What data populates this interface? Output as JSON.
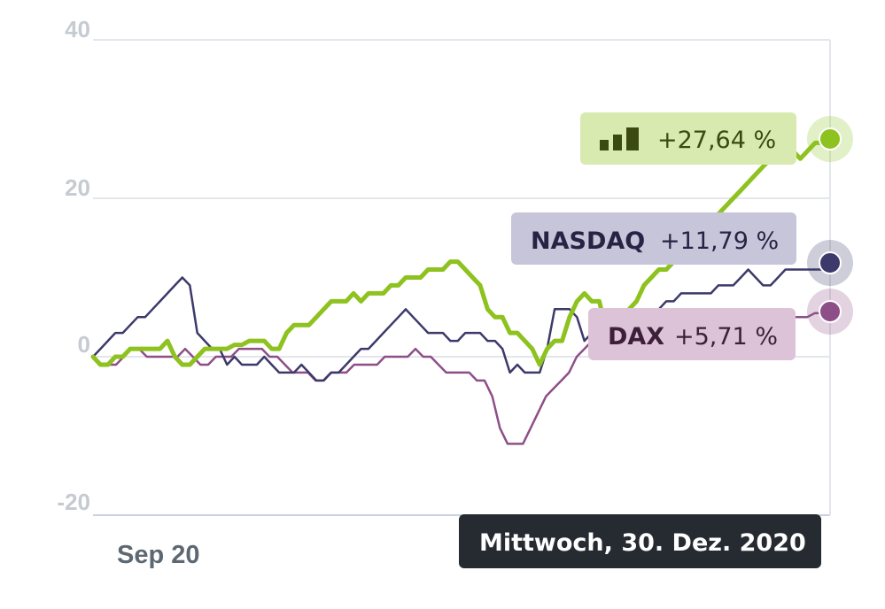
{
  "chart_data": {
    "type": "line",
    "ylim": [
      -20,
      40
    ],
    "y_ticks": [
      "40",
      "20",
      "0",
      "-20"
    ],
    "x_tick_labels": [
      "Sep 20"
    ],
    "grid": true,
    "tooltip": "Mittwoch, 30. Dez. 2020",
    "colors": {
      "stock": "#8dc21f",
      "nasdaq": "#3d3a6b",
      "dax": "#8e4f88"
    },
    "series": [
      {
        "key": "stock",
        "label": "+27,64 %",
        "icon": "bar-chart-icon",
        "values": [
          0,
          -1,
          -1,
          0,
          0,
          1,
          1,
          1,
          1,
          1,
          2,
          0,
          -1,
          -1,
          0,
          1,
          1,
          1,
          1,
          1.5,
          1.5,
          2,
          2,
          2,
          1,
          1,
          3,
          4,
          4,
          4,
          5,
          6,
          7,
          7,
          7,
          8,
          7,
          8,
          8,
          8,
          9,
          9,
          10,
          10,
          10,
          11,
          11,
          11,
          12,
          12,
          11,
          10,
          9,
          6,
          5,
          5,
          3,
          3,
          2,
          1,
          -1,
          1,
          2,
          2,
          5,
          7,
          8,
          7,
          7,
          3,
          4,
          5,
          6,
          7,
          9,
          10,
          11,
          11,
          12,
          13,
          14,
          15,
          16,
          17,
          18,
          19,
          20,
          21,
          22,
          23,
          24,
          25,
          26,
          27,
          26,
          25,
          26,
          27,
          27,
          27.64
        ]
      },
      {
        "key": "nasdaq",
        "label": "+11,79 %",
        "name": "NASDAQ",
        "values": [
          0,
          1,
          2,
          3,
          3,
          4,
          5,
          5,
          6,
          7,
          8,
          9,
          10,
          9,
          3,
          2,
          1,
          1,
          -1,
          0,
          -1,
          -1,
          -1,
          0,
          -1,
          -2,
          -2,
          -2,
          -1,
          -2,
          -3,
          -3,
          -2,
          -2,
          -1,
          0,
          1,
          1,
          2,
          3,
          4,
          5,
          6,
          5,
          4,
          3,
          3,
          3,
          2,
          2,
          3,
          3,
          3,
          2,
          2,
          1,
          -2,
          -1,
          -2,
          -2,
          -2,
          1,
          6,
          6,
          6,
          5,
          2,
          3,
          3,
          4,
          5,
          5,
          6,
          6,
          6,
          6,
          6,
          7,
          7,
          8,
          8,
          8,
          8,
          8,
          9,
          9,
          9,
          10,
          11,
          10,
          9,
          9,
          10,
          11,
          11,
          11,
          11,
          11,
          11,
          11.79
        ]
      },
      {
        "key": "dax",
        "label": "+5,71 %",
        "name": "DAX",
        "values": [
          0,
          -1,
          -1,
          -1,
          0,
          1,
          1,
          0,
          0,
          0,
          0,
          0,
          1,
          0,
          -1,
          -1,
          0,
          0,
          0,
          1,
          1,
          1,
          1,
          0,
          0,
          -1,
          -2,
          -2,
          -2,
          -3,
          -3,
          -2,
          -2,
          -2,
          -1,
          -1,
          -1,
          -1,
          0,
          0,
          0,
          0,
          1,
          0,
          0,
          -1,
          -2,
          -2,
          -2,
          -2,
          -3,
          -3,
          -5,
          -9,
          -11,
          -11,
          -11,
          -9,
          -7,
          -5,
          -4,
          -3,
          -2,
          0,
          1,
          2,
          2,
          2,
          2,
          2,
          2,
          2,
          3,
          3,
          3,
          3,
          3,
          3,
          3,
          4,
          4,
          4,
          4,
          4,
          4,
          4,
          4,
          5,
          5,
          5,
          5,
          5,
          5,
          5,
          5.5,
          5.5,
          5.71
        ]
      }
    ]
  }
}
